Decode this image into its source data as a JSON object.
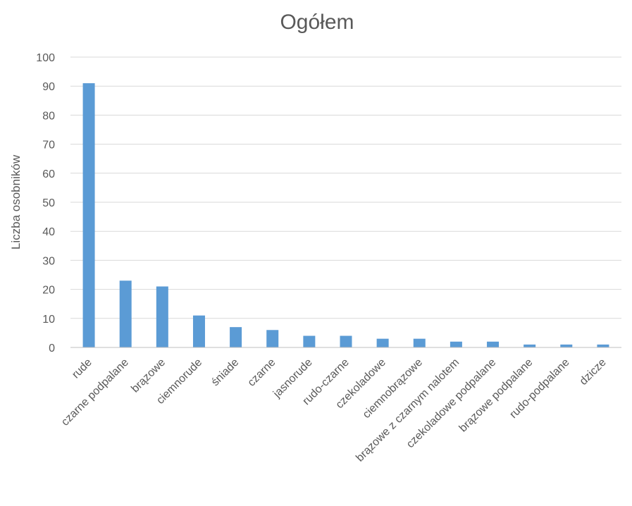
{
  "chart_data": {
    "type": "bar",
    "title": "Ogółem",
    "xlabel": "",
    "ylabel": "Liczba osobników",
    "ylim": [
      0,
      100
    ],
    "yticks": [
      0,
      10,
      20,
      30,
      40,
      50,
      60,
      70,
      80,
      90,
      100
    ],
    "grid": true,
    "bar_color": "#5b9bd5",
    "categories": [
      "rude",
      "czarne podpalane",
      "brązowe",
      "ciemnorude",
      "śniade",
      "czarne",
      "jasnorude",
      "rudo-czarne",
      "czekoladowe",
      "ciemnobrązowe",
      "brązowe z czarnym nalotem",
      "czekoladowe podpalane",
      "brązowe podpalane",
      "rudo-podpalane",
      "dzicze"
    ],
    "values": [
      91,
      23,
      21,
      11,
      7,
      6,
      4,
      4,
      3,
      3,
      2,
      2,
      1,
      1,
      1
    ]
  }
}
